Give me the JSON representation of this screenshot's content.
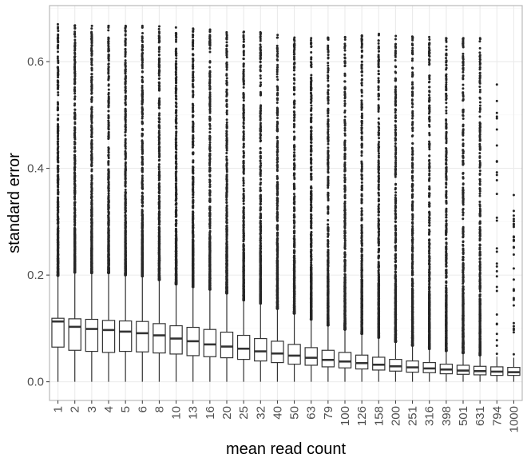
{
  "chart_data": {
    "type": "box",
    "title": "",
    "xlabel": "mean read count",
    "ylabel": "standard error",
    "ylim": [
      -0.035,
      0.705
    ],
    "yticks": [
      0.0,
      0.2,
      0.4,
      0.6
    ],
    "ytick_labels": [
      "0.0",
      "0.2",
      "0.4",
      "0.6"
    ],
    "grid": true,
    "legend": "none",
    "categories": [
      "1",
      "2",
      "3",
      "4",
      "5",
      "6",
      "8",
      "10",
      "13",
      "16",
      "20",
      "25",
      "32",
      "40",
      "50",
      "63",
      "79",
      "100",
      "126",
      "158",
      "200",
      "251",
      "316",
      "398",
      "501",
      "631",
      "794",
      "1000"
    ],
    "boxes": [
      {
        "low": 0.0,
        "q1": 0.065,
        "median": 0.113,
        "q3": 0.119,
        "whisker_high": 0.199,
        "outlier_max": 0.67
      },
      {
        "low": 0.0,
        "q1": 0.059,
        "median": 0.103,
        "q3": 0.118,
        "whisker_high": 0.205,
        "outlier_max": 0.668
      },
      {
        "low": 0.0,
        "q1": 0.057,
        "median": 0.099,
        "q3": 0.117,
        "whisker_high": 0.204,
        "outlier_max": 0.667
      },
      {
        "low": 0.0,
        "q1": 0.055,
        "median": 0.097,
        "q3": 0.115,
        "whisker_high": 0.204,
        "outlier_max": 0.667
      },
      {
        "low": 0.0,
        "q1": 0.057,
        "median": 0.094,
        "q3": 0.114,
        "whisker_high": 0.2,
        "outlier_max": 0.667
      },
      {
        "low": 0.0,
        "q1": 0.056,
        "median": 0.091,
        "q3": 0.113,
        "whisker_high": 0.198,
        "outlier_max": 0.667
      },
      {
        "low": 0.0,
        "q1": 0.054,
        "median": 0.087,
        "q3": 0.109,
        "whisker_high": 0.191,
        "outlier_max": 0.666
      },
      {
        "low": 0.0,
        "q1": 0.052,
        "median": 0.081,
        "q3": 0.105,
        "whisker_high": 0.183,
        "outlier_max": 0.664
      },
      {
        "low": 0.0,
        "q1": 0.049,
        "median": 0.076,
        "q3": 0.102,
        "whisker_high": 0.178,
        "outlier_max": 0.662
      },
      {
        "low": 0.0,
        "q1": 0.047,
        "median": 0.07,
        "q3": 0.098,
        "whisker_high": 0.173,
        "outlier_max": 0.66
      },
      {
        "low": 0.0,
        "q1": 0.045,
        "median": 0.066,
        "q3": 0.093,
        "whisker_high": 0.166,
        "outlier_max": 0.655
      },
      {
        "low": 0.0,
        "q1": 0.042,
        "median": 0.062,
        "q3": 0.087,
        "whisker_high": 0.153,
        "outlier_max": 0.656
      },
      {
        "low": 0.0,
        "q1": 0.039,
        "median": 0.057,
        "q3": 0.081,
        "whisker_high": 0.147,
        "outlier_max": 0.655
      },
      {
        "low": 0.0,
        "q1": 0.036,
        "median": 0.053,
        "q3": 0.076,
        "whisker_high": 0.137,
        "outlier_max": 0.65
      },
      {
        "low": 0.0,
        "q1": 0.033,
        "median": 0.049,
        "q3": 0.07,
        "whisker_high": 0.128,
        "outlier_max": 0.645
      },
      {
        "low": 0.0,
        "q1": 0.031,
        "median": 0.045,
        "q3": 0.064,
        "whisker_high": 0.117,
        "outlier_max": 0.644
      },
      {
        "low": 0.0,
        "q1": 0.028,
        "median": 0.041,
        "q3": 0.059,
        "whisker_high": 0.106,
        "outlier_max": 0.645
      },
      {
        "low": 0.0,
        "q1": 0.026,
        "median": 0.038,
        "q3": 0.055,
        "whisker_high": 0.098,
        "outlier_max": 0.646
      },
      {
        "low": 0.0,
        "q1": 0.024,
        "median": 0.035,
        "q3": 0.05,
        "whisker_high": 0.09,
        "outlier_max": 0.649
      },
      {
        "low": 0.0,
        "q1": 0.022,
        "median": 0.032,
        "q3": 0.046,
        "whisker_high": 0.083,
        "outlier_max": 0.652
      },
      {
        "low": 0.0,
        "q1": 0.02,
        "median": 0.029,
        "q3": 0.042,
        "whisker_high": 0.075,
        "outlier_max": 0.648
      },
      {
        "low": 0.0,
        "q1": 0.018,
        "median": 0.027,
        "q3": 0.039,
        "whisker_high": 0.068,
        "outlier_max": 0.647
      },
      {
        "low": 0.0,
        "q1": 0.017,
        "median": 0.025,
        "q3": 0.036,
        "whisker_high": 0.062,
        "outlier_max": 0.646
      },
      {
        "low": 0.0,
        "q1": 0.015,
        "median": 0.023,
        "q3": 0.033,
        "whisker_high": 0.058,
        "outlier_max": 0.644
      },
      {
        "low": 0.0,
        "q1": 0.014,
        "median": 0.021,
        "q3": 0.031,
        "whisker_high": 0.054,
        "outlier_max": 0.644
      },
      {
        "low": 0.0,
        "q1": 0.013,
        "median": 0.02,
        "q3": 0.029,
        "whisker_high": 0.05,
        "outlier_max": 0.644
      },
      {
        "low": 0.0,
        "q1": 0.012,
        "median": 0.019,
        "q3": 0.028,
        "whisker_high": 0.047,
        "outlier_max": 0.557
      },
      {
        "low": 0.0,
        "q1": 0.012,
        "median": 0.018,
        "q3": 0.027,
        "whisker_high": 0.045,
        "outlier_max": 0.35
      }
    ],
    "colors": {
      "box_fill": "#ffffff",
      "box_stroke": "#333333",
      "outlier": "#262626",
      "grid_major": "#ebebeb",
      "grid_minor": "#f5f5f5",
      "panel_border": "#b3b3b3",
      "tick_text": "#4d4d4d"
    }
  }
}
